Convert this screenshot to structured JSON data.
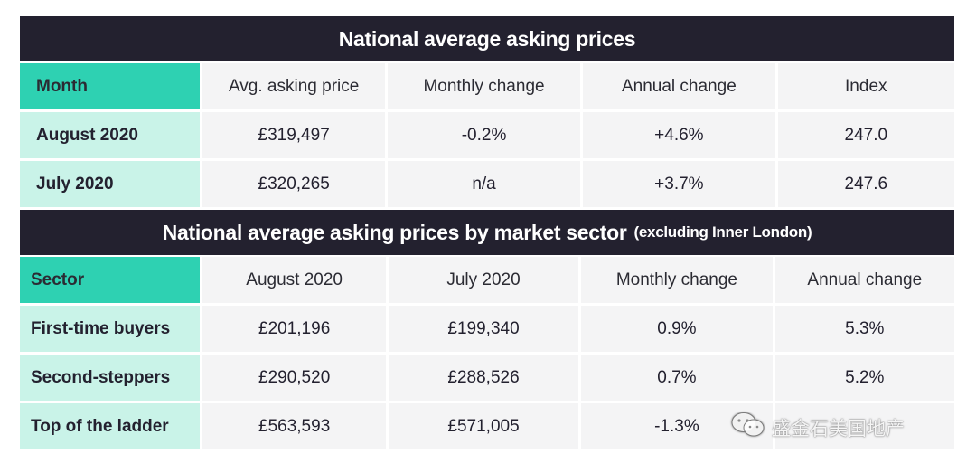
{
  "table1": {
    "title": "National average asking prices",
    "headers": [
      "Month",
      "Avg. asking price",
      "Monthly change",
      "Annual change",
      "Index"
    ],
    "rows": [
      [
        "August 2020",
        "£319,497",
        "-0.2%",
        "+4.6%",
        "247.0"
      ],
      [
        "July 2020",
        "£320,265",
        "n/a",
        "+3.7%",
        "247.6"
      ]
    ]
  },
  "table2": {
    "title": "National average asking prices by market sector",
    "subtitle": "(excluding Inner London)",
    "headers": [
      "Sector",
      "August 2020",
      "July 2020",
      "Monthly change",
      "Annual change"
    ],
    "rows": [
      [
        "First-time buyers",
        "£201,196",
        "£199,340",
        "0.9%",
        "5.3%"
      ],
      [
        "Second-steppers",
        "£290,520",
        "£288,526",
        "0.7%",
        "5.2%"
      ],
      [
        "Top of the ladder",
        "£563,593",
        "£571,005",
        "-1.3%",
        ""
      ]
    ]
  },
  "watermark": {
    "text": "盛金石美国地产",
    "icon": "wechat-icon"
  },
  "colors": {
    "title_bg": "#23212f",
    "header_accent": "#2ed1b2",
    "first_col": "#c9f3e8",
    "cell_bg": "#f4f4f5"
  }
}
